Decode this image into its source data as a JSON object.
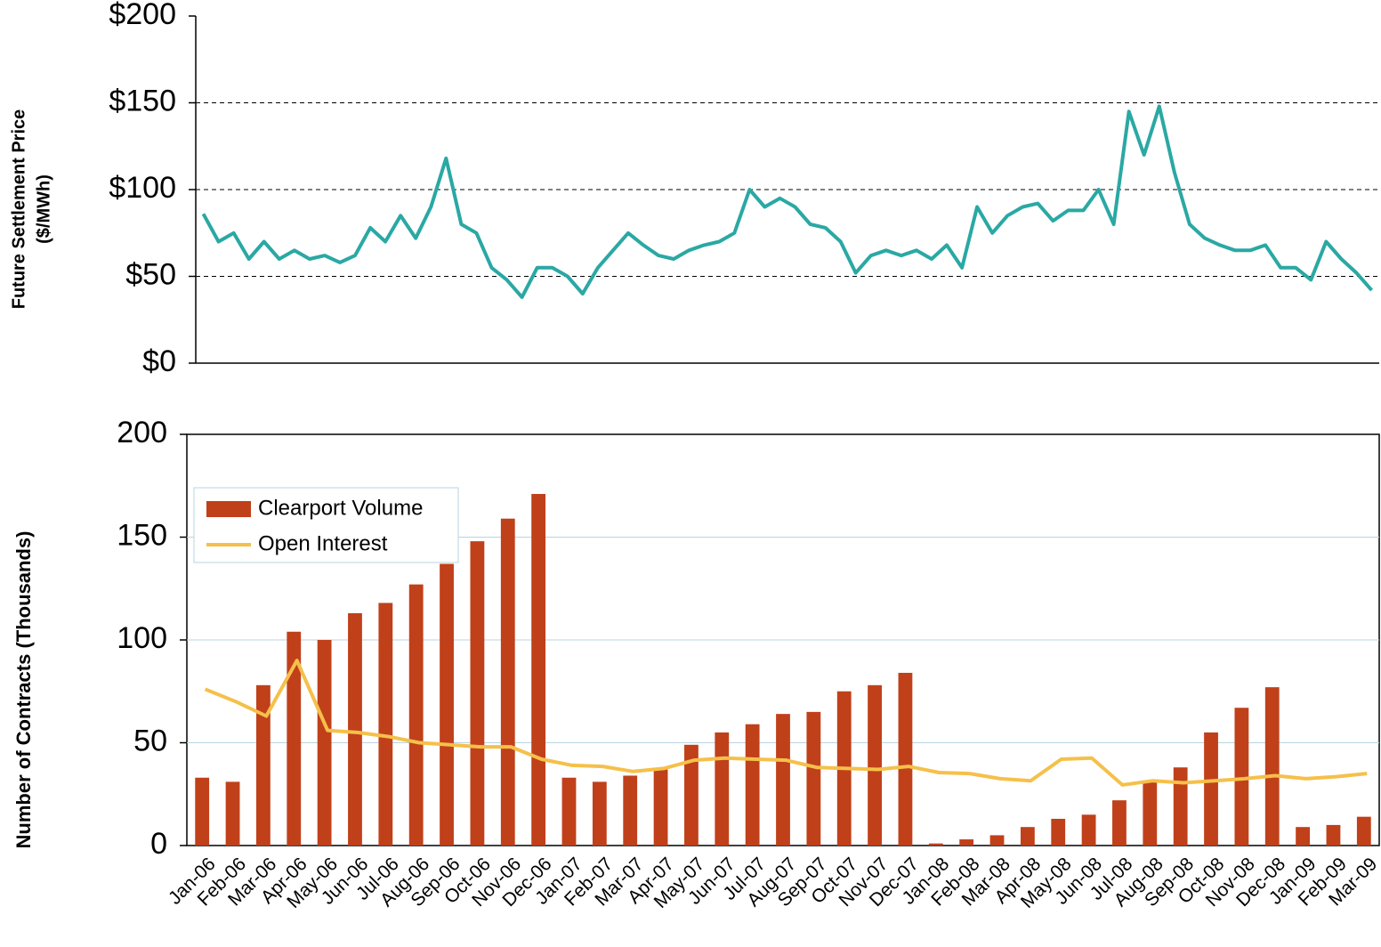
{
  "chart_data": [
    {
      "type": "line",
      "ylabel": [
        "Future Settlement Price",
        "($/MWh)"
      ],
      "values": [
        86,
        70,
        75,
        60,
        70,
        60,
        65,
        60,
        62,
        58,
        62,
        78,
        70,
        85,
        72,
        90,
        118,
        80,
        75,
        55,
        48,
        38,
        55,
        55,
        50,
        40,
        55,
        65,
        75,
        68,
        62,
        60,
        65,
        68,
        70,
        75,
        100,
        90,
        95,
        90,
        80,
        78,
        70,
        52,
        62,
        65,
        62,
        65,
        60,
        68,
        55,
        90,
        75,
        85,
        90,
        92,
        82,
        88,
        88,
        100,
        80,
        145,
        120,
        148,
        110,
        80,
        72,
        68,
        65,
        65,
        68,
        55,
        55,
        48,
        70,
        60,
        52,
        42
      ],
      "color": "#2aa8a4",
      "ylim": [
        0,
        200
      ],
      "yticks": [
        {
          "value": 0,
          "label": "$0"
        },
        {
          "value": 50,
          "label": "$50"
        },
        {
          "value": 100,
          "label": "$100"
        },
        {
          "value": 150,
          "label": "$150"
        },
        {
          "value": 200,
          "label": "$200"
        }
      ],
      "grid": true
    },
    {
      "type": "bar",
      "ylabel": "Number of Contracts (Thousands)",
      "categories": [
        "Jan-06",
        "Feb-06",
        "Mar-06",
        "Apr-06",
        "May-06",
        "Jun-06",
        "Jul-06",
        "Aug-06",
        "Sep-06",
        "Oct-06",
        "Nov-06",
        "Dec-06",
        "Jan-07",
        "Feb-07",
        "Mar-07",
        "Apr-07",
        "May-07",
        "Jun-07",
        "Jul-07",
        "Aug-07",
        "Sep-07",
        "Oct-07",
        "Nov-07",
        "Dec-07",
        "Jan-08",
        "Feb-08",
        "Mar-08",
        "Apr-08",
        "May-08",
        "Jun-08",
        "Jul-08",
        "Aug-08",
        "Sep-08",
        "Oct-08",
        "Nov-08",
        "Dec-08",
        "Jan-09",
        "Feb-09",
        "Mar-09"
      ],
      "series": [
        {
          "name": "Clearport Volume",
          "type": "bar",
          "color": "#c0401a",
          "values": [
            33,
            31,
            78,
            104,
            100,
            113,
            118,
            127,
            137,
            148,
            159,
            171,
            33,
            31,
            34,
            37,
            49,
            55,
            59,
            64,
            65,
            75,
            78,
            84,
            1,
            3,
            5,
            9,
            13,
            15,
            22,
            31,
            38,
            55,
            67,
            77,
            9,
            10,
            14
          ]
        },
        {
          "name": "Open Interest",
          "type": "line",
          "color": "#f5c04a",
          "values": [
            76,
            70,
            63,
            90,
            56,
            55,
            53,
            50,
            49,
            48,
            48,
            42,
            39,
            38.5,
            36,
            37.5,
            41.5,
            42.5,
            42,
            41.5,
            38,
            37.5,
            37,
            38.5,
            35.5,
            35,
            32.5,
            31.5,
            42,
            42.5,
            29.5,
            31.5,
            30.5,
            31.5,
            32.5,
            34,
            32.5,
            33.5,
            35
          ]
        }
      ],
      "ylim": [
        0,
        200
      ],
      "yticks": [
        0,
        50,
        100,
        150,
        200
      ],
      "grid": true,
      "legend": "upper-left"
    }
  ]
}
